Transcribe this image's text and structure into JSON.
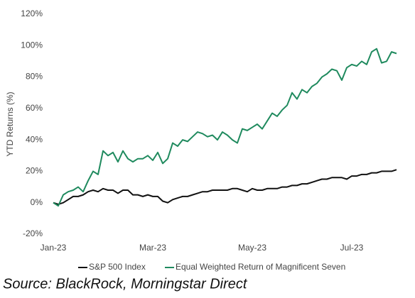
{
  "chart_data": {
    "type": "line",
    "y_label": "YTD Returns (%)",
    "source": "Source: BlackRock, Morningstar Direct",
    "categories": [
      "Jan-23",
      null,
      null,
      null,
      null,
      null,
      null,
      null,
      null,
      null,
      null,
      null,
      null,
      null,
      null,
      null,
      null,
      null,
      null,
      null,
      "Mar-23",
      null,
      null,
      null,
      null,
      null,
      null,
      null,
      null,
      null,
      null,
      null,
      null,
      null,
      null,
      null,
      null,
      null,
      null,
      null,
      "May-23",
      null,
      null,
      null,
      null,
      null,
      null,
      null,
      null,
      null,
      null,
      null,
      null,
      null,
      null,
      null,
      null,
      null,
      null,
      null,
      "Jul-23",
      null,
      null,
      null,
      null,
      null,
      null,
      null,
      null,
      null
    ],
    "series": [
      {
        "name": "S&P 500 Index",
        "color": "#111111",
        "values": [
          0,
          -1,
          0,
          2,
          4,
          4,
          5,
          7,
          8,
          7,
          9,
          8,
          8,
          6,
          8,
          8,
          5,
          5,
          4,
          5,
          4,
          4,
          1,
          0,
          2,
          3,
          4,
          4,
          5,
          6,
          7,
          7,
          8,
          8,
          8,
          8,
          9,
          9,
          8,
          7,
          9,
          8,
          8,
          9,
          9,
          9,
          10,
          10,
          11,
          11,
          12,
          12,
          13,
          14,
          15,
          15,
          16,
          16,
          16,
          15,
          17,
          17,
          18,
          18,
          19,
          19,
          20,
          20,
          20,
          21
        ]
      },
      {
        "name": "Equal Weighted Return of Magnificent Seven",
        "color": "#1f8a5e",
        "values": [
          0,
          -2,
          5,
          7,
          8,
          10,
          7,
          14,
          20,
          18,
          33,
          30,
          32,
          26,
          33,
          28,
          26,
          28,
          28,
          30,
          27,
          32,
          25,
          28,
          38,
          36,
          40,
          39,
          42,
          45,
          44,
          42,
          43,
          40,
          45,
          43,
          40,
          38,
          47,
          46,
          48,
          50,
          47,
          52,
          57,
          55,
          59,
          62,
          70,
          66,
          72,
          70,
          74,
          76,
          80,
          82,
          85,
          84,
          78,
          86,
          88,
          87,
          90,
          88,
          96,
          98,
          89,
          90,
          96,
          95
        ]
      }
    ],
    "ylim": [
      -20,
      120
    ],
    "yticks": [
      {
        "value": -20,
        "label": "-20%"
      },
      {
        "value": 0,
        "label": "0%"
      },
      {
        "value": 20,
        "label": "20%"
      },
      {
        "value": 40,
        "label": "40%"
      },
      {
        "value": 60,
        "label": "60%"
      },
      {
        "value": 80,
        "label": "80%"
      },
      {
        "value": 100,
        "label": "100%"
      },
      {
        "value": 120,
        "label": "120%"
      }
    ]
  }
}
